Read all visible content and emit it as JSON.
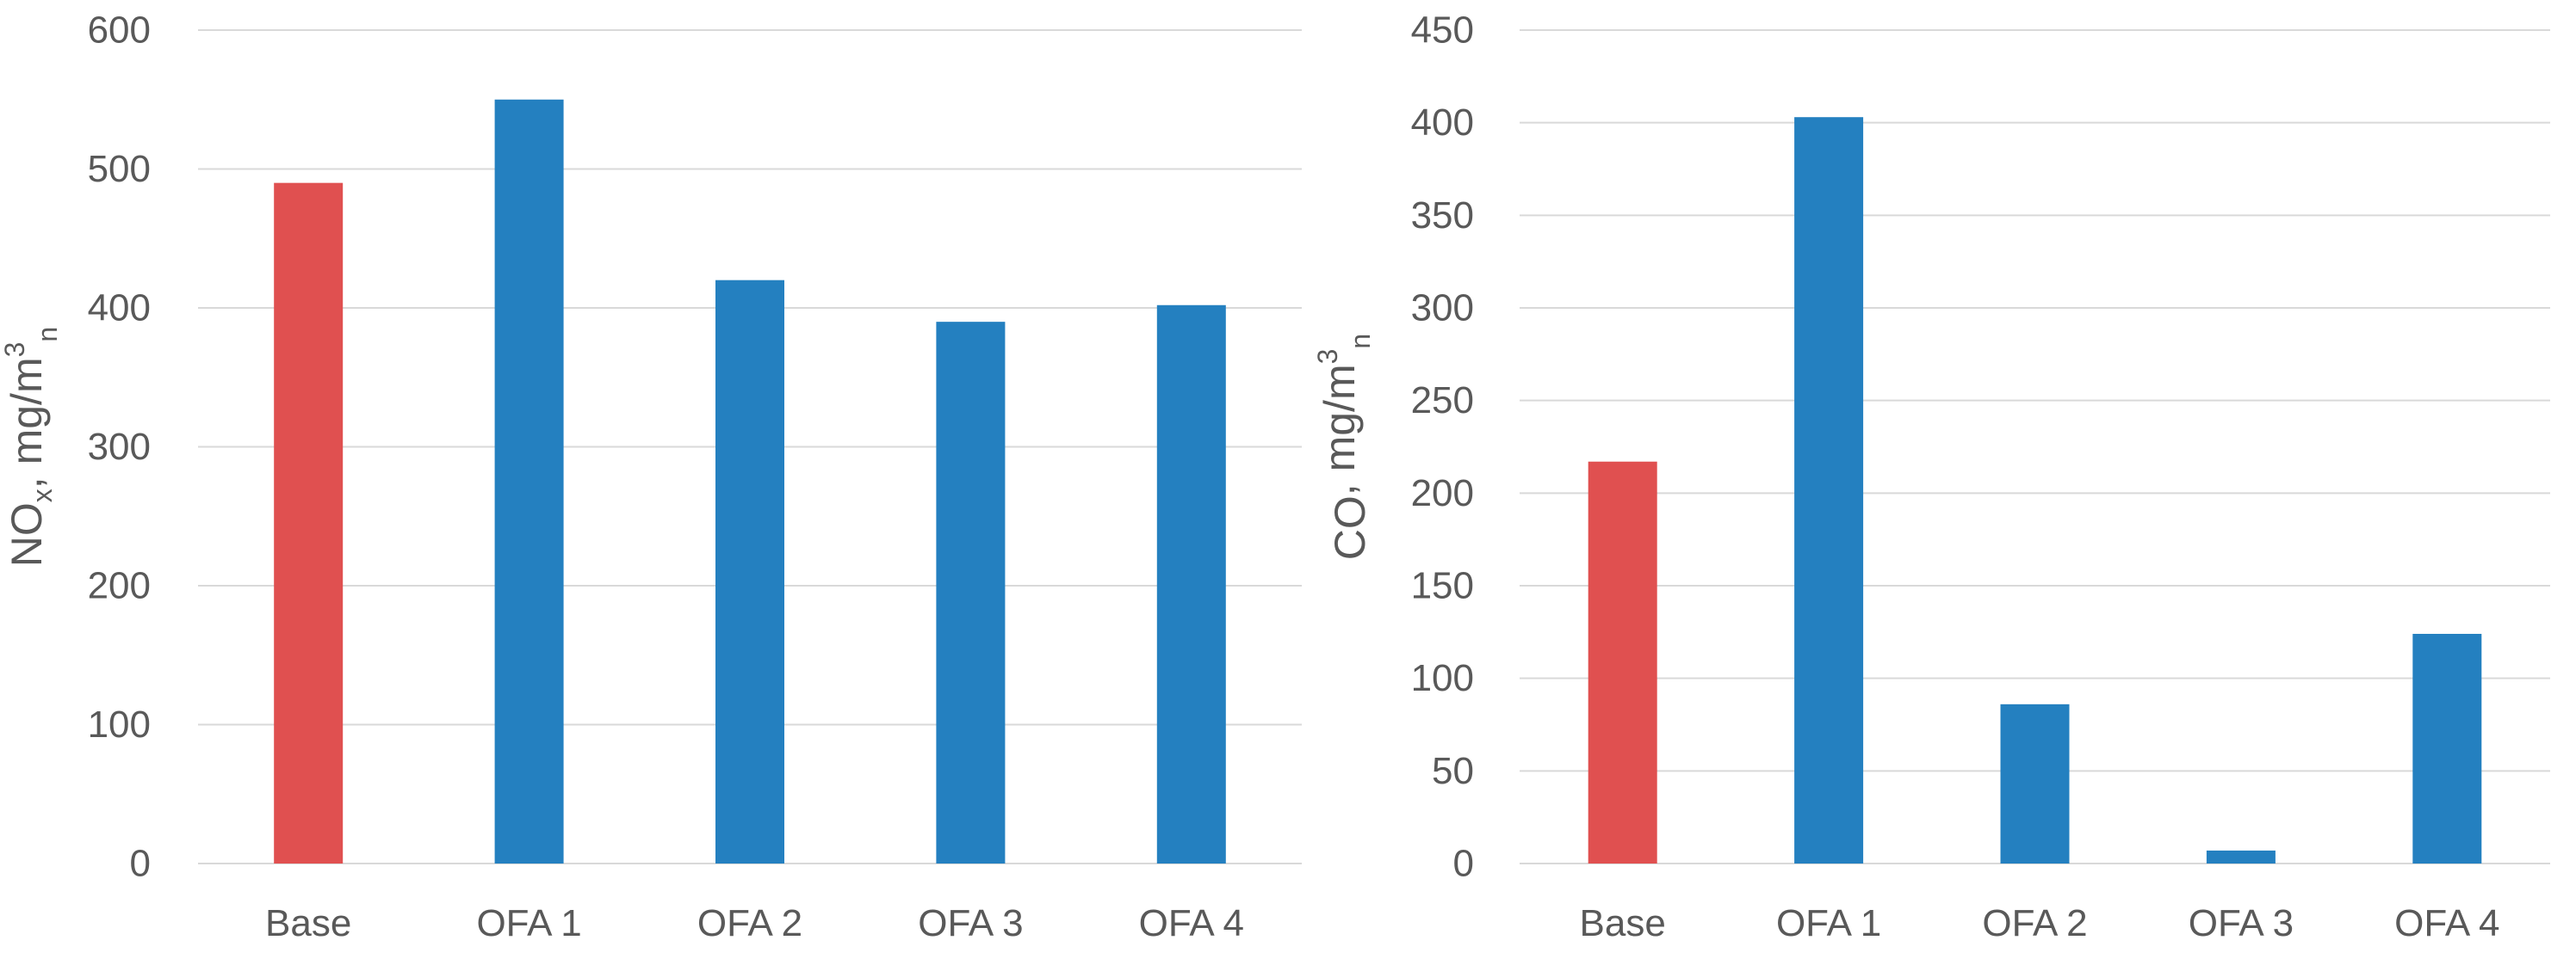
{
  "chart_data": [
    {
      "type": "bar",
      "title": "",
      "xlabel": "",
      "ylabel": {
        "main": "NO",
        "sub": "x",
        "rest": ", mg/m",
        "sup": "3",
        "sub2": "n"
      },
      "categories": [
        "Base",
        "OFA 1",
        "OFA 2",
        "OFA 3",
        "OFA 4"
      ],
      "values": [
        490,
        550,
        420,
        390,
        402
      ],
      "bar_colors": [
        "#e05050",
        "#2480c0",
        "#2480c0",
        "#2480c0",
        "#2480c0"
      ],
      "ylim": [
        0,
        600
      ],
      "yticks": [
        0,
        100,
        200,
        300,
        400,
        500,
        600
      ],
      "grid": true,
      "legend": "none"
    },
    {
      "type": "bar",
      "title": "",
      "xlabel": "",
      "ylabel": {
        "main": "CO",
        "sub": "",
        "rest": ", mg/m",
        "sup": "3",
        "sub2": "n"
      },
      "categories": [
        "Base",
        "OFA 1",
        "OFA 2",
        "OFA 3",
        "OFA 4"
      ],
      "values": [
        217,
        403,
        86,
        7,
        124
      ],
      "bar_colors": [
        "#e05050",
        "#2480c0",
        "#2480c0",
        "#2480c0",
        "#2480c0"
      ],
      "ylim": [
        0,
        450
      ],
      "yticks": [
        0,
        50,
        100,
        150,
        200,
        250,
        300,
        350,
        400,
        450
      ],
      "grid": true,
      "legend": "none"
    }
  ]
}
